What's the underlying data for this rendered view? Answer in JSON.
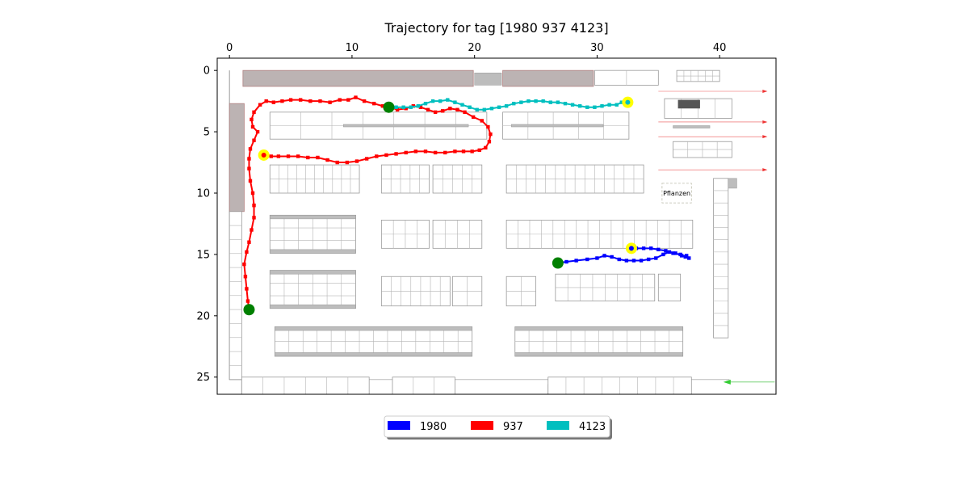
{
  "chart_data": {
    "type": "scatter",
    "title": "Trajectory for tag [1980  937 4123]",
    "xlabel": "",
    "ylabel": "",
    "xlim": [
      -1,
      44.6
    ],
    "ylim": [
      26.4,
      -1
    ],
    "x_axis_position": "top",
    "y_axis_inverted": true,
    "xticks": [
      0,
      10,
      20,
      30,
      40
    ],
    "yticks": [
      0,
      5,
      10,
      15,
      20,
      25
    ],
    "grid": false,
    "legend_position": "bottom-center",
    "background": "floor-plan image",
    "map_label": "Pflanzen",
    "series": [
      {
        "name": "1980",
        "color": "#0000ff",
        "start": [
          26.8,
          15.7
        ],
        "end": [
          32.8,
          14.5
        ],
        "points": [
          [
            26.8,
            15.7
          ],
          [
            27.5,
            15.6
          ],
          [
            28.3,
            15.5
          ],
          [
            29.2,
            15.4
          ],
          [
            30.0,
            15.3
          ],
          [
            30.6,
            15.1
          ],
          [
            31.2,
            15.2
          ],
          [
            31.8,
            15.4
          ],
          [
            32.4,
            15.5
          ],
          [
            33.0,
            15.5
          ],
          [
            33.6,
            15.5
          ],
          [
            34.2,
            15.4
          ],
          [
            34.8,
            15.3
          ],
          [
            35.4,
            15.0
          ],
          [
            35.9,
            14.8
          ],
          [
            36.4,
            14.9
          ],
          [
            36.9,
            15.1
          ],
          [
            37.3,
            15.1
          ],
          [
            37.5,
            15.3
          ],
          [
            37.2,
            15.2
          ],
          [
            36.8,
            15.0
          ],
          [
            36.2,
            14.9
          ],
          [
            35.6,
            14.7
          ],
          [
            35.0,
            14.6
          ],
          [
            34.4,
            14.5
          ],
          [
            33.8,
            14.5
          ],
          [
            33.2,
            14.5
          ],
          [
            32.8,
            14.5
          ]
        ]
      },
      {
        "name": "937",
        "color": "#ff0000",
        "start": [
          1.6,
          19.5
        ],
        "end": [
          2.8,
          6.9
        ],
        "points": [
          [
            1.6,
            19.5
          ],
          [
            1.5,
            18.8
          ],
          [
            1.4,
            17.8
          ],
          [
            1.3,
            16.8
          ],
          [
            1.2,
            15.8
          ],
          [
            1.4,
            14.8
          ],
          [
            1.6,
            14.0
          ],
          [
            1.8,
            13.0
          ],
          [
            2.0,
            12.0
          ],
          [
            2.0,
            11.0
          ],
          [
            1.9,
            10.0
          ],
          [
            1.7,
            9.0
          ],
          [
            1.6,
            8.0
          ],
          [
            1.6,
            7.2
          ],
          [
            1.7,
            6.4
          ],
          [
            2.0,
            5.7
          ],
          [
            2.3,
            5.0
          ],
          [
            1.9,
            4.6
          ],
          [
            1.8,
            4.0
          ],
          [
            2.0,
            3.4
          ],
          [
            2.5,
            2.8
          ],
          [
            3.0,
            2.5
          ],
          [
            3.6,
            2.6
          ],
          [
            4.3,
            2.5
          ],
          [
            5.0,
            2.4
          ],
          [
            5.8,
            2.4
          ],
          [
            6.6,
            2.5
          ],
          [
            7.4,
            2.5
          ],
          [
            8.2,
            2.6
          ],
          [
            9.0,
            2.4
          ],
          [
            9.7,
            2.4
          ],
          [
            10.3,
            2.2
          ],
          [
            11.0,
            2.5
          ],
          [
            11.8,
            2.7
          ],
          [
            12.5,
            2.9
          ],
          [
            13.1,
            3.0
          ],
          [
            13.7,
            3.2
          ],
          [
            14.4,
            3.1
          ],
          [
            15.0,
            2.9
          ],
          [
            15.6,
            3.0
          ],
          [
            16.2,
            3.2
          ],
          [
            16.8,
            3.4
          ],
          [
            17.4,
            3.3
          ],
          [
            18.0,
            3.1
          ],
          [
            18.6,
            3.2
          ],
          [
            19.2,
            3.4
          ],
          [
            19.9,
            3.8
          ],
          [
            20.6,
            4.1
          ],
          [
            21.1,
            4.6
          ],
          [
            21.3,
            5.2
          ],
          [
            21.2,
            5.8
          ],
          [
            20.9,
            6.3
          ],
          [
            20.4,
            6.5
          ],
          [
            19.8,
            6.6
          ],
          [
            19.1,
            6.6
          ],
          [
            18.4,
            6.6
          ],
          [
            17.6,
            6.7
          ],
          [
            16.8,
            6.7
          ],
          [
            16.0,
            6.6
          ],
          [
            15.2,
            6.6
          ],
          [
            14.4,
            6.7
          ],
          [
            13.6,
            6.8
          ],
          [
            12.8,
            6.9
          ],
          [
            12.0,
            7.0
          ],
          [
            11.2,
            7.2
          ],
          [
            10.4,
            7.4
          ],
          [
            9.6,
            7.5
          ],
          [
            8.8,
            7.5
          ],
          [
            8.0,
            7.3
          ],
          [
            7.2,
            7.1
          ],
          [
            6.4,
            7.1
          ],
          [
            5.6,
            7.0
          ],
          [
            4.8,
            7.0
          ],
          [
            4.0,
            7.0
          ],
          [
            3.4,
            7.0
          ],
          [
            2.8,
            6.9
          ]
        ]
      },
      {
        "name": "4123",
        "color": "#00bfbf",
        "start": [
          13.0,
          3.0
        ],
        "end": [
          32.5,
          2.6
        ],
        "points": [
          [
            13.0,
            3.0
          ],
          [
            13.6,
            3.0
          ],
          [
            14.2,
            3.0
          ],
          [
            14.8,
            3.0
          ],
          [
            15.4,
            2.9
          ],
          [
            16.0,
            2.7
          ],
          [
            16.6,
            2.5
          ],
          [
            17.2,
            2.5
          ],
          [
            17.8,
            2.4
          ],
          [
            18.4,
            2.6
          ],
          [
            19.0,
            2.8
          ],
          [
            19.6,
            3.0
          ],
          [
            20.2,
            3.2
          ],
          [
            20.8,
            3.2
          ],
          [
            21.4,
            3.1
          ],
          [
            22.0,
            3.0
          ],
          [
            22.6,
            2.9
          ],
          [
            23.2,
            2.7
          ],
          [
            23.8,
            2.6
          ],
          [
            24.4,
            2.5
          ],
          [
            25.0,
            2.5
          ],
          [
            25.6,
            2.5
          ],
          [
            26.2,
            2.6
          ],
          [
            26.8,
            2.6
          ],
          [
            27.4,
            2.7
          ],
          [
            28.0,
            2.8
          ],
          [
            28.6,
            2.9
          ],
          [
            29.2,
            3.0
          ],
          [
            29.8,
            3.0
          ],
          [
            30.4,
            2.9
          ],
          [
            31.0,
            2.8
          ],
          [
            31.6,
            2.8
          ],
          [
            32.0,
            2.6
          ],
          [
            32.5,
            2.6
          ]
        ]
      }
    ]
  }
}
